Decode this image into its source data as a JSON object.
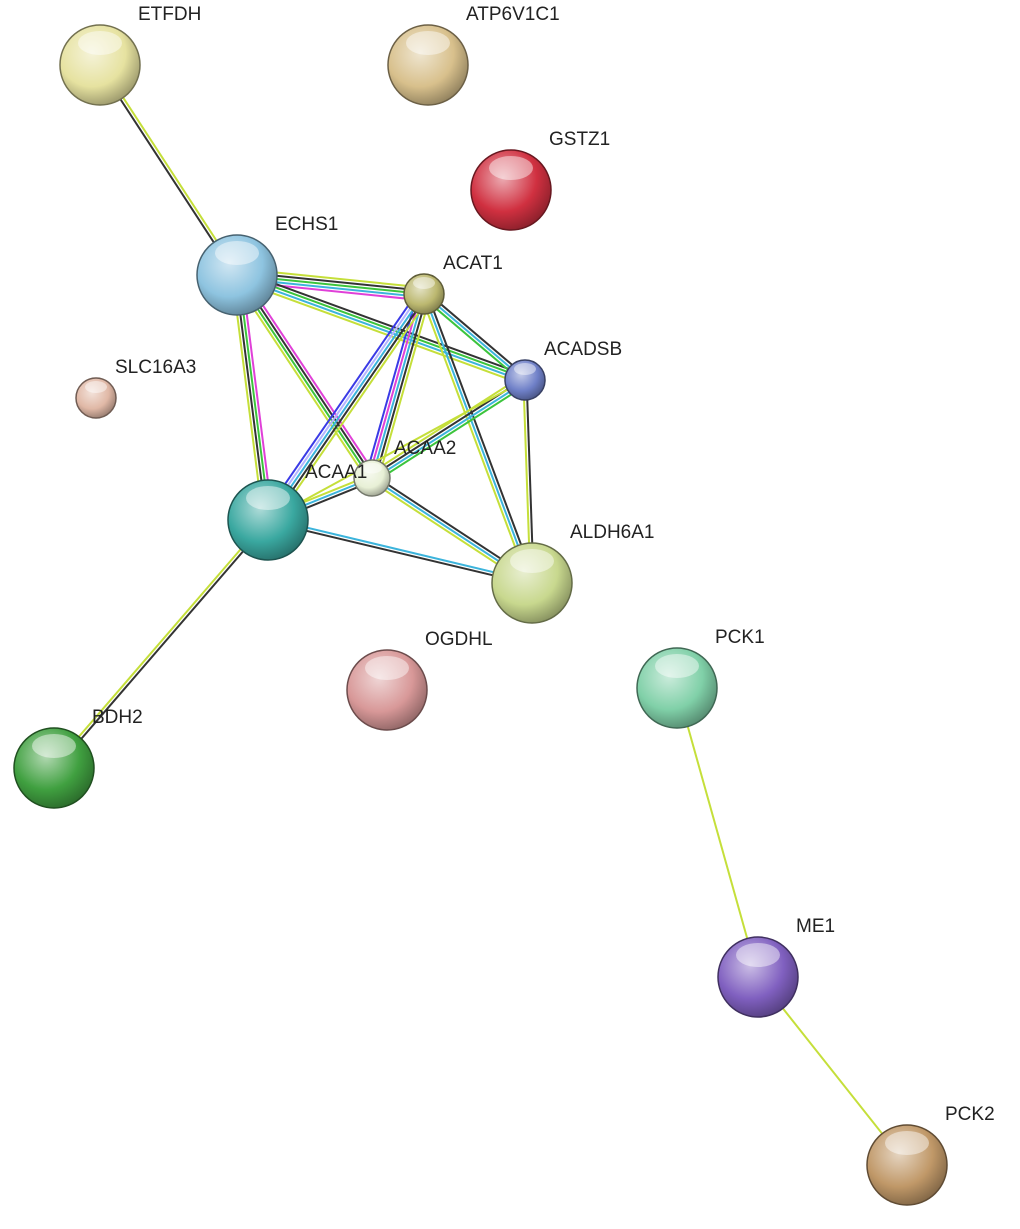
{
  "evidence_colors": {
    "textmining": "#c5df3a",
    "coexpression": "#333333",
    "database": "#3cc43c",
    "experiments": "#e040d8",
    "curated": "#3cb4dc",
    "cooccurrence": "#3a3ae6",
    "homology": "#b4b4ff"
  },
  "nodes": [
    {
      "id": "ETFDH",
      "label": "ETFDH",
      "color": "#e6e2a0"
    },
    {
      "id": "ATP6V1C1",
      "label": "ATP6V1C1",
      "color": "#d8c08c"
    },
    {
      "id": "GSTZ1",
      "label": "GSTZ1",
      "color": "#d03040"
    },
    {
      "id": "ECHS1",
      "label": "ECHS1",
      "color": "#8ec4e0"
    },
    {
      "id": "ACAT1",
      "label": "ACAT1",
      "color": "#bcb870"
    },
    {
      "id": "ACADSB",
      "label": "ACADSB",
      "color": "#6f80c8"
    },
    {
      "id": "SLC16A3",
      "label": "SLC16A3",
      "color": "#e0b8a6"
    },
    {
      "id": "ACAA2",
      "label": "ACAA2",
      "color": "#e8f0d6"
    },
    {
      "id": "ACAA1",
      "label": "ACAA1",
      "color": "#3aa8a0"
    },
    {
      "id": "ALDH6A1",
      "label": "ALDH6A1",
      "color": "#c8d88e"
    },
    {
      "id": "OGDHL",
      "label": "OGDHL",
      "color": "#d89898"
    },
    {
      "id": "PCK1",
      "label": "PCK1",
      "color": "#80d0a8"
    },
    {
      "id": "BDH2",
      "label": "BDH2",
      "color": "#40a040"
    },
    {
      "id": "ME1",
      "label": "ME1",
      "color": "#8060c0"
    },
    {
      "id": "PCK2",
      "label": "PCK2",
      "color": "#c09868"
    }
  ],
  "edges": [
    {
      "a": "ETFDH",
      "b": "ECHS1",
      "evidence": [
        "textmining",
        "coexpression"
      ]
    },
    {
      "a": "ECHS1",
      "b": "ACAT1",
      "evidence": [
        "textmining",
        "coexpression",
        "database",
        "curated",
        "experiments"
      ]
    },
    {
      "a": "ECHS1",
      "b": "ACADSB",
      "evidence": [
        "coexpression",
        "database",
        "curated",
        "textmining"
      ]
    },
    {
      "a": "ECHS1",
      "b": "ACAA2",
      "evidence": [
        "experiments",
        "coexpression",
        "database",
        "textmining"
      ]
    },
    {
      "a": "ECHS1",
      "b": "ACAA1",
      "evidence": [
        "experiments",
        "database",
        "coexpression",
        "textmining"
      ]
    },
    {
      "a": "ACAT1",
      "b": "ACADSB",
      "evidence": [
        "coexpression",
        "curated",
        "database"
      ]
    },
    {
      "a": "ACAT1",
      "b": "ACAA2",
      "evidence": [
        "textmining",
        "coexpression",
        "curated",
        "experiments",
        "cooccurrence"
      ]
    },
    {
      "a": "ACAT1",
      "b": "ACAA1",
      "evidence": [
        "textmining",
        "coexpression",
        "curated",
        "homology",
        "cooccurrence"
      ]
    },
    {
      "a": "ACAT1",
      "b": "ALDH6A1",
      "evidence": [
        "coexpression",
        "curated",
        "textmining"
      ]
    },
    {
      "a": "ACADSB",
      "b": "ACAA2",
      "evidence": [
        "database",
        "curated",
        "coexpression",
        "textmining"
      ]
    },
    {
      "a": "ACADSB",
      "b": "ACAA1",
      "evidence": [
        "textmining"
      ]
    },
    {
      "a": "ACADSB",
      "b": "ALDH6A1",
      "evidence": [
        "coexpression",
        "textmining"
      ]
    },
    {
      "a": "ACAA2",
      "b": "ACAA1",
      "evidence": [
        "coexpression",
        "curated",
        "textmining"
      ]
    },
    {
      "a": "ACAA2",
      "b": "ALDH6A1",
      "evidence": [
        "coexpression",
        "curated",
        "textmining"
      ]
    },
    {
      "a": "ACAA1",
      "b": "ALDH6A1",
      "evidence": [
        "curated",
        "coexpression"
      ]
    },
    {
      "a": "ACAA1",
      "b": "BDH2",
      "evidence": [
        "coexpression",
        "textmining"
      ]
    },
    {
      "a": "PCK1",
      "b": "ME1",
      "evidence": [
        "textmining"
      ]
    },
    {
      "a": "ME1",
      "b": "PCK2",
      "evidence": [
        "textmining"
      ]
    }
  ]
}
